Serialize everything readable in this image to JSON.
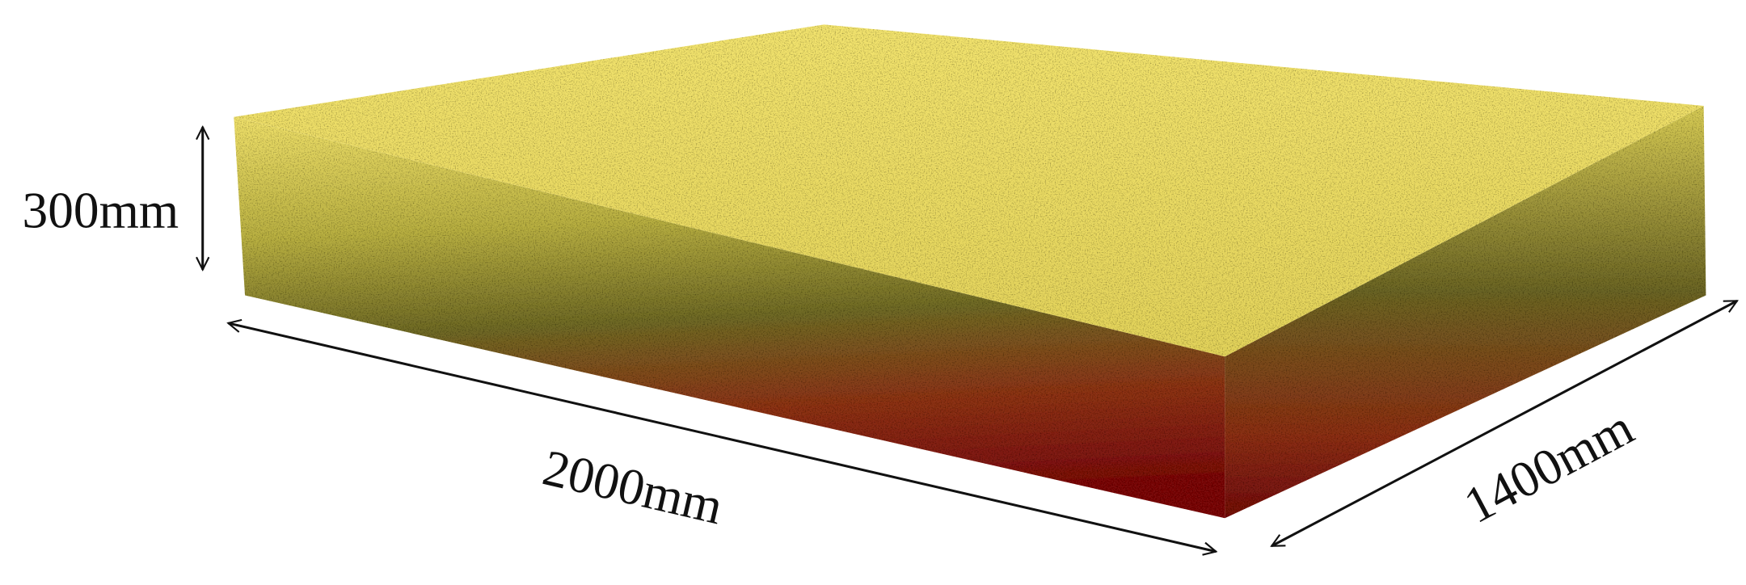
{
  "dimensions": {
    "height": "300mm",
    "length": "2000mm",
    "width": "1400mm"
  }
}
